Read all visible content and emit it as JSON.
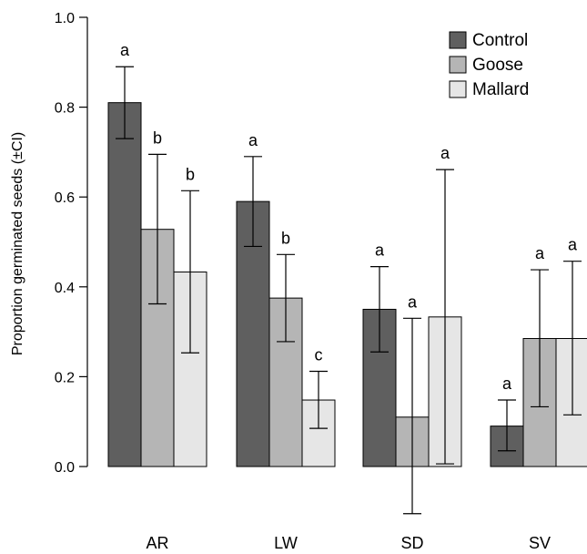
{
  "chart_data": {
    "type": "bar",
    "categories": [
      "AR",
      "LW",
      "SD",
      "SV"
    ],
    "ylabel": "Proportion germinated seeds (±CI)",
    "xlabel": "",
    "ylim": [
      0,
      1.0
    ],
    "yticks": [
      "0.0",
      "0.2",
      "0.4",
      "0.6",
      "0.8",
      "1.0"
    ],
    "legend_position": "top-right",
    "grid": false,
    "error_bars": "CI",
    "series": [
      {
        "name": "Control",
        "color": "#5f5f5f",
        "values": [
          0.81,
          0.59,
          0.35,
          0.09
        ],
        "ci_low": [
          0.73,
          0.49,
          0.255,
          0.035
        ],
        "ci_high": [
          0.89,
          0.69,
          0.445,
          0.148
        ],
        "letters": [
          "a",
          "a",
          "a",
          "a"
        ]
      },
      {
        "name": "Goose",
        "color": "#b5b5b5",
        "values": [
          0.528,
          0.375,
          0.11,
          0.285
        ],
        "ci_low": [
          0.362,
          0.278,
          -0.105,
          0.133
        ],
        "ci_high": [
          0.695,
          0.472,
          0.33,
          0.438
        ],
        "letters": [
          "b",
          "b",
          "a",
          "a"
        ]
      },
      {
        "name": "Mallard",
        "color": "#e6e6e6",
        "values": [
          0.433,
          0.148,
          0.333,
          0.285
        ],
        "ci_low": [
          0.253,
          0.085,
          0.006,
          0.115
        ],
        "ci_high": [
          0.614,
          0.212,
          0.661,
          0.457
        ],
        "letters": [
          "b",
          "c",
          "a",
          "a"
        ]
      }
    ]
  }
}
